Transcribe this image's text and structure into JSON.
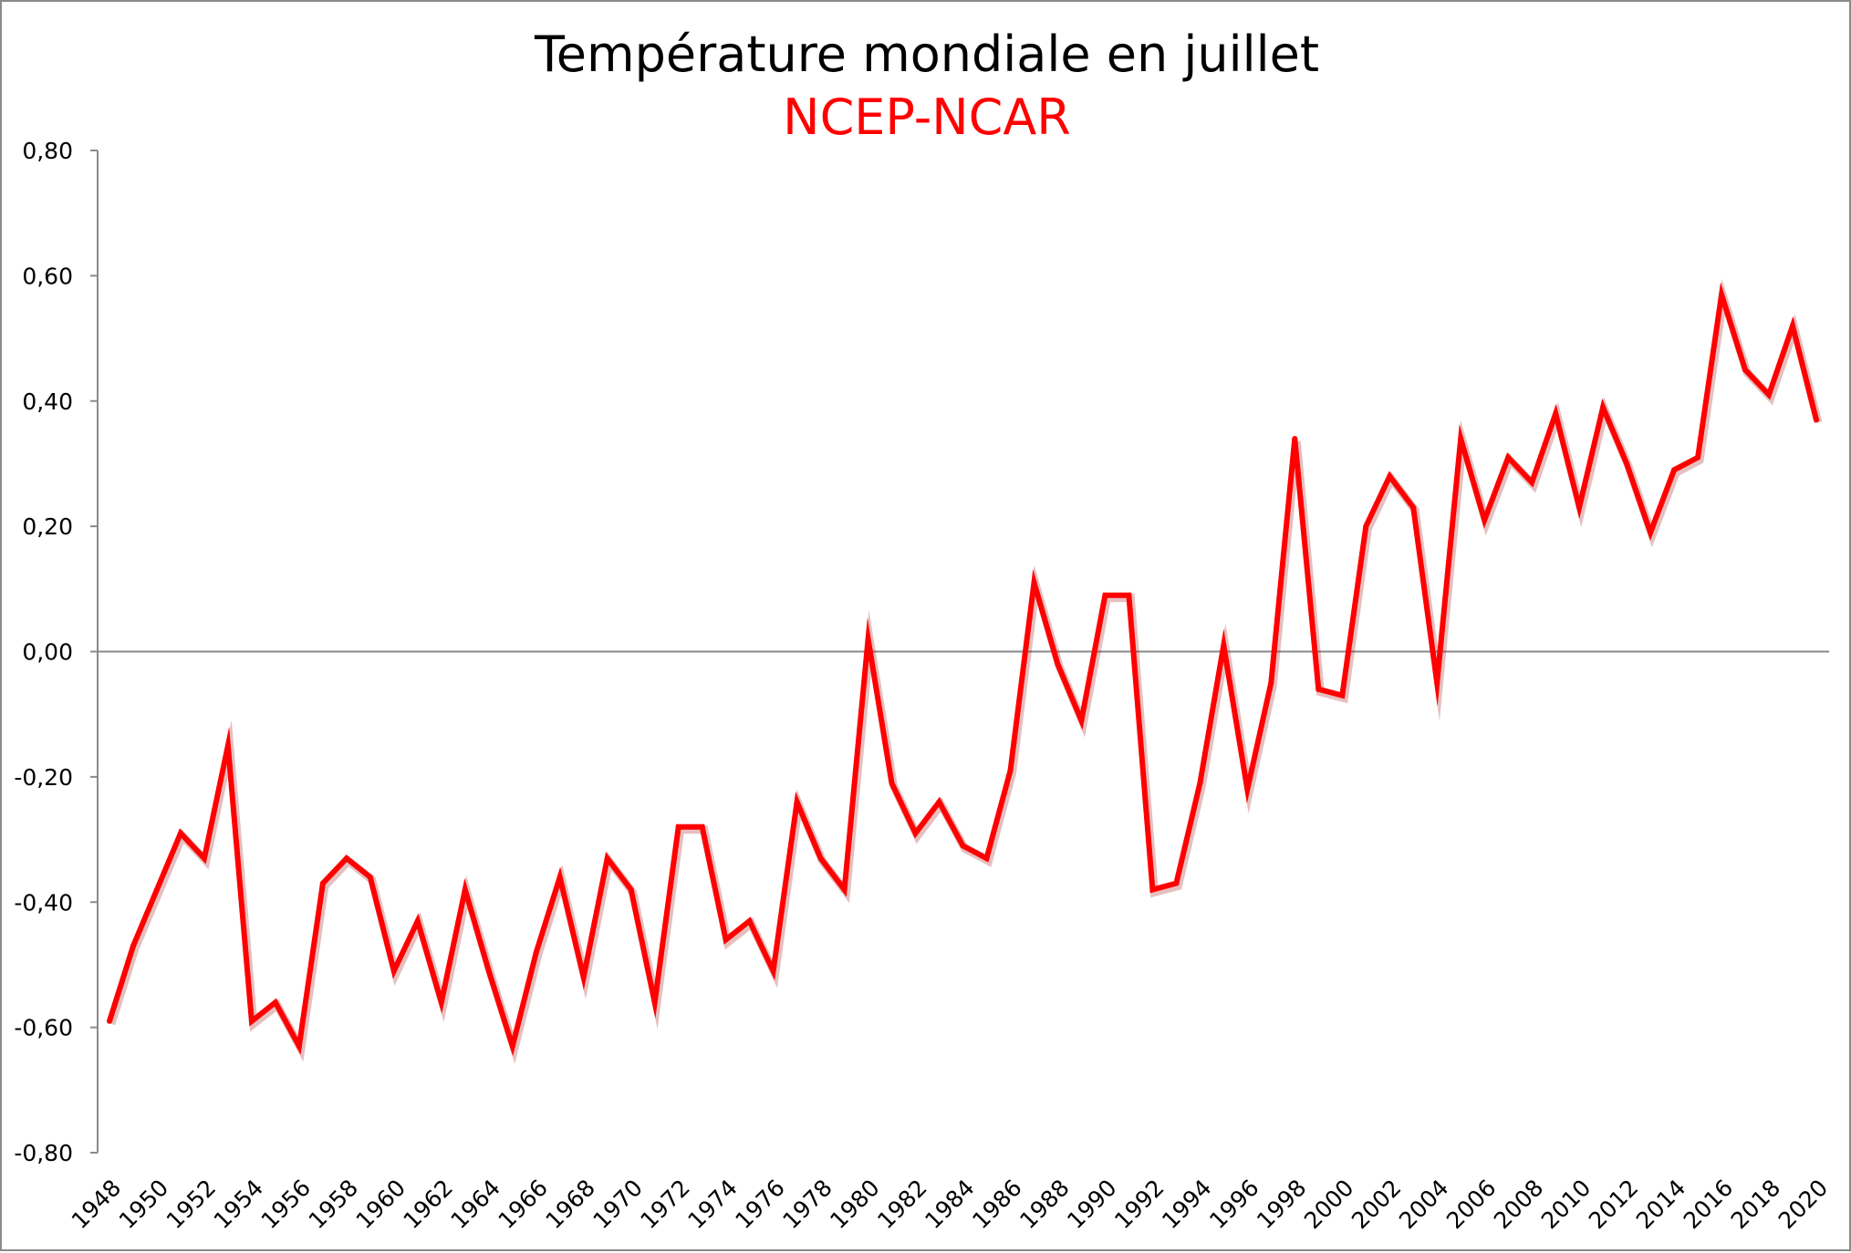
{
  "chart_data": {
    "type": "line",
    "title": "Température mondiale en juillet",
    "subtitle": "NCEP-NCAR",
    "subtitle_color": "#ff0000",
    "line_color": "#ff0000",
    "xlabel": "",
    "ylabel": "",
    "ylim": [
      -0.8,
      0.8
    ],
    "y_ticks": [
      "0,80",
      "0,60",
      "0,40",
      "0,20",
      "0,00",
      "-0,20",
      "-0,40",
      "-0,60",
      "-0,80"
    ],
    "x_tick_labels": [
      "1948",
      "1950",
      "1952",
      "1954",
      "1956",
      "1958",
      "1960",
      "1962",
      "1964",
      "1966",
      "1968",
      "1970",
      "1972",
      "1974",
      "1976",
      "1978",
      "1980",
      "1982",
      "1984",
      "1986",
      "1988",
      "1990",
      "1992",
      "1994",
      "1996",
      "1998",
      "2000",
      "2002",
      "2004",
      "2006",
      "2008",
      "2010",
      "2012",
      "2014",
      "2016",
      "2018",
      "2020"
    ],
    "grid": false,
    "zero_line": true,
    "legend": "none",
    "x": [
      1948,
      1949,
      1950,
      1951,
      1952,
      1953,
      1954,
      1955,
      1956,
      1957,
      1958,
      1959,
      1960,
      1961,
      1962,
      1963,
      1964,
      1965,
      1966,
      1967,
      1968,
      1969,
      1970,
      1971,
      1972,
      1973,
      1974,
      1975,
      1976,
      1977,
      1978,
      1979,
      1980,
      1981,
      1982,
      1983,
      1984,
      1985,
      1986,
      1987,
      1988,
      1989,
      1990,
      1991,
      1992,
      1993,
      1994,
      1995,
      1996,
      1997,
      1998,
      1999,
      2000,
      2001,
      2002,
      2003,
      2004,
      2005,
      2006,
      2007,
      2008,
      2009,
      2010,
      2011,
      2012,
      2013,
      2014,
      2015,
      2016,
      2017,
      2018,
      2019,
      2020
    ],
    "series": [
      {
        "values": [
          -0.59,
          -0.47,
          -0.38,
          -0.29,
          -0.33,
          -0.15,
          -0.59,
          -0.56,
          -0.63,
          -0.37,
          -0.33,
          -0.36,
          -0.51,
          -0.43,
          -0.56,
          -0.38,
          -0.51,
          -0.63,
          -0.48,
          -0.36,
          -0.52,
          -0.33,
          -0.38,
          -0.56,
          -0.28,
          -0.28,
          -0.46,
          -0.43,
          -0.51,
          -0.24,
          -0.33,
          -0.38,
          0.02,
          -0.21,
          -0.29,
          -0.24,
          -0.31,
          -0.33,
          -0.19,
          0.11,
          -0.02,
          -0.11,
          0.09,
          0.09,
          -0.38,
          -0.37,
          -0.21,
          0.01,
          -0.22,
          -0.05,
          0.34,
          -0.06,
          -0.07,
          0.2,
          0.28,
          0.23,
          -0.05,
          0.34,
          0.21,
          0.31,
          0.27,
          0.38,
          0.23,
          0.39,
          0.3,
          0.19,
          0.29,
          0.31,
          0.57,
          0.45,
          0.41,
          0.52,
          0.37
        ]
      }
    ]
  }
}
